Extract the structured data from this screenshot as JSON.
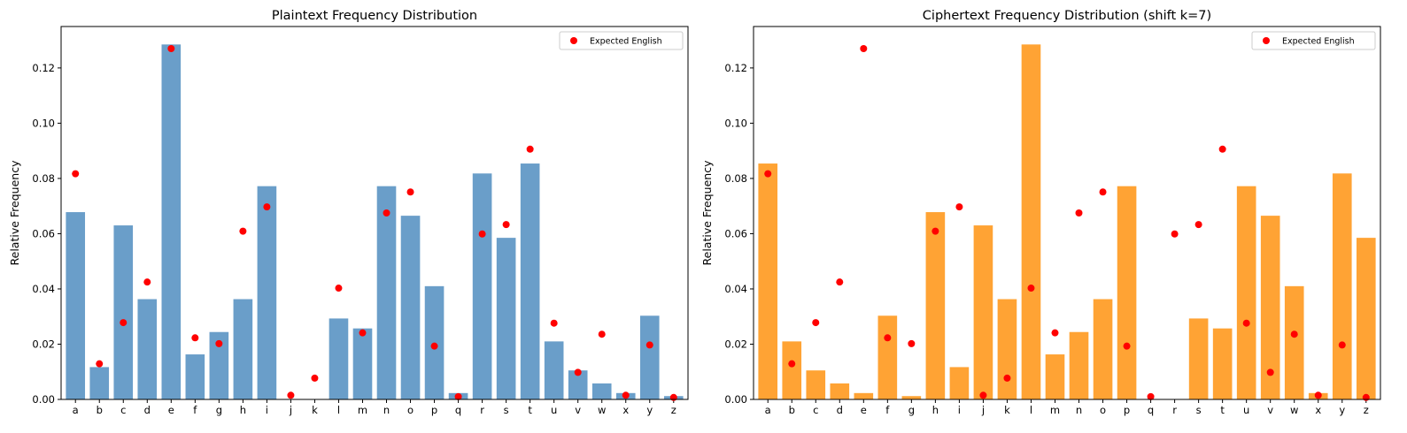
{
  "colors": {
    "plaintext_bar": "#6a9ec9",
    "ciphertext_bar": "#ffa334",
    "expected_marker": "#ff0000"
  },
  "chart_data": [
    {
      "type": "bar",
      "title": "Plaintext Frequency Distribution",
      "xlabel": "",
      "ylabel": "Relative Frequency",
      "ylim": [
        0,
        0.135
      ],
      "yticks": [
        "0.00",
        "0.02",
        "0.04",
        "0.06",
        "0.08",
        "0.10",
        "0.12"
      ],
      "grid": false,
      "legend_position": "top-right",
      "categories": [
        "a",
        "b",
        "c",
        "d",
        "e",
        "f",
        "g",
        "h",
        "i",
        "j",
        "k",
        "l",
        "m",
        "n",
        "o",
        "p",
        "q",
        "r",
        "s",
        "t",
        "u",
        "v",
        "w",
        "x",
        "y",
        "z"
      ],
      "series": [
        {
          "kind": "bar",
          "values": [
            0.0678,
            0.0117,
            0.063,
            0.0363,
            0.1285,
            0.0163,
            0.0244,
            0.0363,
            0.0772,
            0.0,
            0.0,
            0.0293,
            0.0257,
            0.0772,
            0.0665,
            0.041,
            0.0023,
            0.0818,
            0.0585,
            0.0854,
            0.021,
            0.0105,
            0.0058,
            0.0023,
            0.0303,
            0.0012
          ]
        },
        {
          "kind": "scatter",
          "name": "Expected English",
          "values": [
            0.0817,
            0.0129,
            0.0278,
            0.0425,
            0.127,
            0.0223,
            0.0202,
            0.0609,
            0.0697,
            0.0015,
            0.0077,
            0.0403,
            0.0241,
            0.0675,
            0.0751,
            0.0193,
            0.001,
            0.0599,
            0.0633,
            0.0906,
            0.0276,
            0.0098,
            0.0236,
            0.0015,
            0.0197,
            0.0007
          ]
        }
      ]
    },
    {
      "type": "bar",
      "title": "Ciphertext Frequency Distribution (shift k=7)",
      "xlabel": "",
      "ylabel": "Relative Frequency",
      "ylim": [
        0,
        0.135
      ],
      "yticks": [
        "0.00",
        "0.02",
        "0.04",
        "0.06",
        "0.08",
        "0.10",
        "0.12"
      ],
      "grid": false,
      "legend_position": "top-right",
      "categories": [
        "a",
        "b",
        "c",
        "d",
        "e",
        "f",
        "g",
        "h",
        "i",
        "j",
        "k",
        "l",
        "m",
        "n",
        "o",
        "p",
        "q",
        "r",
        "s",
        "t",
        "u",
        "v",
        "w",
        "x",
        "y",
        "z"
      ],
      "series": [
        {
          "kind": "bar",
          "values": [
            0.0854,
            0.021,
            0.0105,
            0.0058,
            0.0023,
            0.0303,
            0.0012,
            0.0678,
            0.0117,
            0.063,
            0.0363,
            0.1285,
            0.0163,
            0.0244,
            0.0363,
            0.0772,
            0.0,
            0.0,
            0.0293,
            0.0257,
            0.0772,
            0.0665,
            0.041,
            0.0023,
            0.0818,
            0.0585
          ]
        },
        {
          "kind": "scatter",
          "name": "Expected English",
          "values": [
            0.0817,
            0.0129,
            0.0278,
            0.0425,
            0.127,
            0.0223,
            0.0202,
            0.0609,
            0.0697,
            0.0015,
            0.0077,
            0.0403,
            0.0241,
            0.0675,
            0.0751,
            0.0193,
            0.001,
            0.0599,
            0.0633,
            0.0906,
            0.0276,
            0.0098,
            0.0236,
            0.0015,
            0.0197,
            0.0007
          ]
        }
      ]
    }
  ]
}
